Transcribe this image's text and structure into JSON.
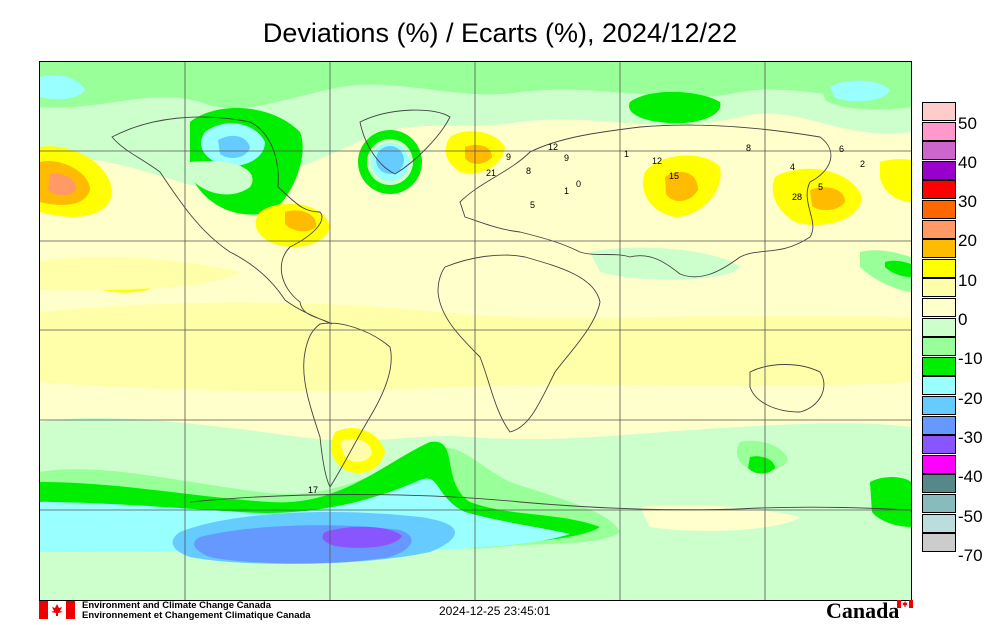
{
  "title": "Deviations (%) / Ecarts (%), 2024/12/22",
  "timestamp": "2024-12-25 23:45:01",
  "footer": {
    "org_en": "Environment and Climate Change Canada",
    "org_fr": "Environnement et Changement Climatique Canada",
    "wordmark": "Canada"
  },
  "legend": {
    "labels": [
      "50",
      "40",
      "30",
      "20",
      "10",
      "0",
      "-10",
      "-20",
      "-30",
      "-40",
      "-50",
      "-70"
    ],
    "colors": [
      "#ffcccc",
      "#ff99cc",
      "#cc66cc",
      "#9900cc",
      "#ff0000",
      "#ff6600",
      "#ff9966",
      "#ffbb00",
      "#ffff00",
      "#ffffaa",
      "#ffffcc",
      "#ccffcc",
      "#99ff99",
      "#00ee00",
      "#99ffff",
      "#66ccff",
      "#6699ff",
      "#8855ff",
      "#ff00ff",
      "#558888",
      "#88bbbb",
      "#bbdddd",
      "#cccccc"
    ]
  },
  "stations": [
    {
      "label": "12"
    },
    {
      "label": "9"
    },
    {
      "label": "21"
    },
    {
      "label": "9"
    },
    {
      "label": "8"
    },
    {
      "label": "0"
    },
    {
      "label": "1"
    },
    {
      "label": "12"
    },
    {
      "label": "15"
    },
    {
      "label": "8"
    },
    {
      "label": "4"
    },
    {
      "label": "28"
    },
    {
      "label": "5"
    },
    {
      "label": "6"
    },
    {
      "label": "2"
    },
    {
      "label": "5"
    },
    {
      "label": "1"
    },
    {
      "label": "17"
    }
  ],
  "palette": {
    "base": "#ffffcc",
    "light_green": "#ccffcc",
    "mid_green": "#99ff99",
    "green": "#00ee00",
    "cyan": "#99ffff",
    "sky": "#66ccff",
    "blue": "#6699ff",
    "violet": "#8855ff",
    "light_yellow": "#ffffaa",
    "yellow": "#ffff00",
    "gold": "#ffbb00",
    "salmon": "#ff9966"
  }
}
